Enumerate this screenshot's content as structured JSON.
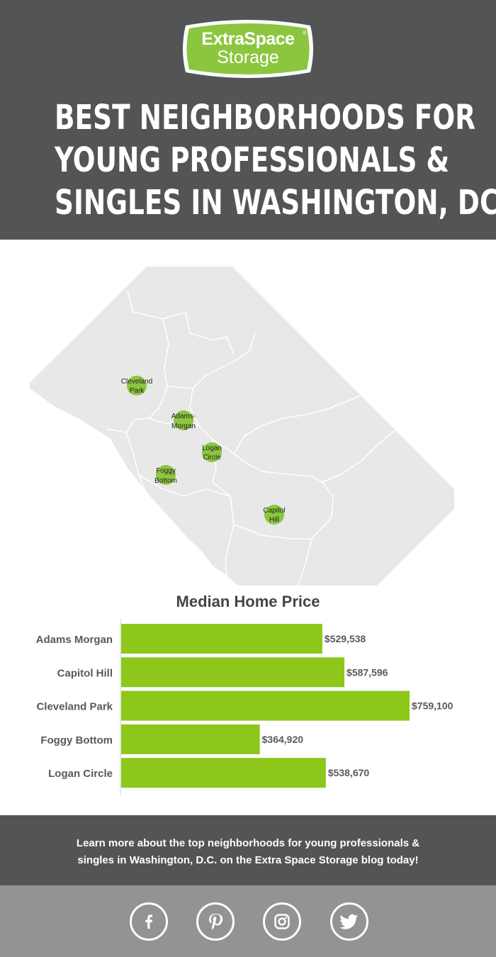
{
  "logo": {
    "line1": "ExtraSpace",
    "line2": "Storage",
    "registered": "®"
  },
  "header": {
    "title_lines": [
      "BEST NEIGHBORHOODS FOR",
      "YOUNG PROFESSIONALS &",
      "SINGLES IN WASHINGTON, DC"
    ]
  },
  "map": {
    "markers": [
      {
        "line1": "Cleveland",
        "line2": "Park"
      },
      {
        "line1": "Adams-",
        "line2": "Morgan"
      },
      {
        "line1": "Logan",
        "line2": "Circle"
      },
      {
        "line1": "Foggy",
        "line2": "Bottom"
      },
      {
        "line1": "Capitol",
        "line2": "Hill"
      }
    ],
    "colors": {
      "land": "#e8e8e9",
      "marker": "#8cc63f"
    }
  },
  "chart_data": {
    "type": "bar",
    "orientation": "horizontal",
    "title": "Median Home Price",
    "categories": [
      "Adams Morgan",
      "Capitol Hill",
      "Cleveland Park",
      "Foggy Bottom",
      "Logan Circle"
    ],
    "values": [
      529538,
      587596,
      759100,
      364920,
      538670
    ],
    "value_labels": [
      "$529,538",
      "$587,596",
      "$759,100",
      "$364,920",
      "$538,670"
    ],
    "xlim": [
      0,
      759100
    ],
    "grid": false,
    "bar_color": "#8cc71a"
  },
  "footer": {
    "cta_line1": "Learn more about the top neighborhoods for young professionals &",
    "cta_line2": "singles in Washington, D.C. on the Extra Space Storage blog today!",
    "social": [
      "facebook-icon",
      "pinterest-icon",
      "instagram-icon",
      "twitter-icon"
    ]
  },
  "colors": {
    "header_bg": "#525456",
    "accent_green": "#8cc63f",
    "footer_social_bg": "#939393"
  }
}
